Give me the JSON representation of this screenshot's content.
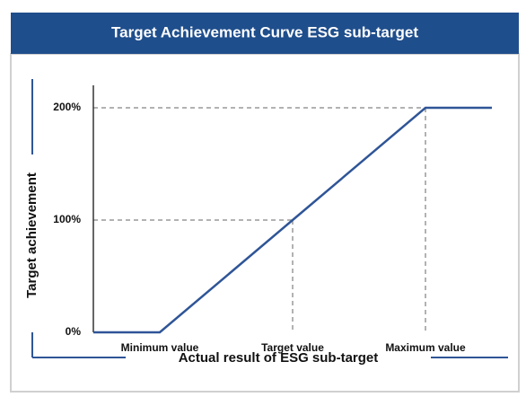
{
  "chart_data": {
    "type": "line",
    "title": "Target Achievement Curve ESG sub-target",
    "xlabel": "Actual result of ESG sub-target",
    "ylabel": "Target achievement",
    "x": [
      0,
      1,
      3,
      5,
      6
    ],
    "xlim": [
      0,
      6
    ],
    "xticks": [
      {
        "value": 1,
        "label": "Minimum value"
      },
      {
        "value": 3,
        "label": "Target value"
      },
      {
        "value": 5,
        "label": "Maximum value"
      }
    ],
    "series": [
      {
        "color": "#2f5597",
        "values": [
          0,
          0,
          100,
          200,
          200
        ]
      }
    ],
    "ylim": [
      0,
      220
    ],
    "yticks": [
      {
        "value": 0,
        "label": "0%"
      },
      {
        "value": 100,
        "label": "100%"
      },
      {
        "value": 200,
        "label": "200%"
      }
    ]
  }
}
